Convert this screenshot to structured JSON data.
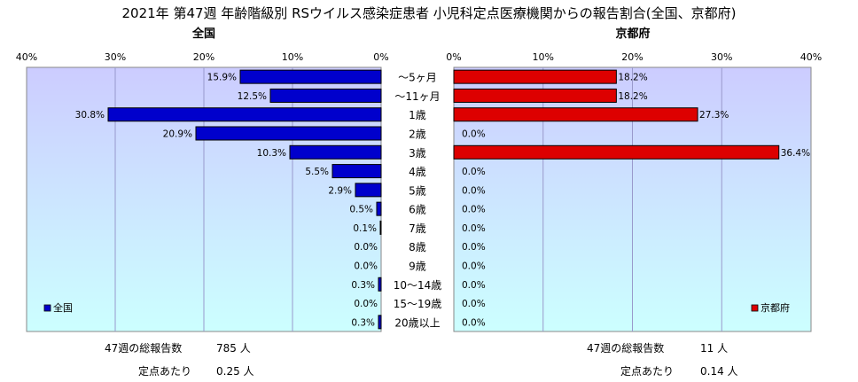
{
  "title": "2021年 第47週 年齢階級別 RSウイルス感染症患者 小児科定点医療機関からの報告割合(全国、京都府)",
  "age_groups": [
    "～5ヶ月",
    "～11ヶ月",
    "1歳",
    "2歳",
    "3歳",
    "4歳",
    "5歳",
    "6歳",
    "7歳",
    "8歳",
    "9歳",
    "10～14歳",
    "15～19歳",
    "20歳以上"
  ],
  "chart_data": [
    {
      "type": "bar",
      "orientation": "horizontal",
      "direction": "right-to-left",
      "title": "全国",
      "categories": [
        "～5ヶ月",
        "～11ヶ月",
        "1歳",
        "2歳",
        "3歳",
        "4歳",
        "5歳",
        "6歳",
        "7歳",
        "8歳",
        "9歳",
        "10～14歳",
        "15～19歳",
        "20歳以上"
      ],
      "series": [
        {
          "name": "全国",
          "color": "#0000cc",
          "values": [
            15.9,
            12.5,
            30.8,
            20.9,
            10.3,
            5.5,
            2.9,
            0.5,
            0.1,
            0.0,
            0.0,
            0.3,
            0.0,
            0.3
          ],
          "labels": [
            "15.9%",
            "12.5%",
            "30.8%",
            "20.9%",
            "10.3%",
            "5.5%",
            "2.9%",
            "0.5%",
            "0.1%",
            "0.0%",
            "0.0%",
            "0.3%",
            "0.0%",
            "0.3%"
          ]
        }
      ],
      "xlim": [
        0,
        40
      ],
      "ticks": [
        "40%",
        "30%",
        "20%",
        "10%",
        "0%"
      ],
      "grid": true,
      "legend": "bottom-left"
    },
    {
      "type": "bar",
      "orientation": "horizontal",
      "direction": "left-to-right",
      "title": "京都府",
      "categories": [
        "～5ヶ月",
        "～11ヶ月",
        "1歳",
        "2歳",
        "3歳",
        "4歳",
        "5歳",
        "6歳",
        "7歳",
        "8歳",
        "9歳",
        "10～14歳",
        "15～19歳",
        "20歳以上"
      ],
      "series": [
        {
          "name": "京都府",
          "color": "#dd0000",
          "values": [
            18.2,
            18.2,
            27.3,
            0.0,
            36.4,
            0.0,
            0.0,
            0.0,
            0.0,
            0.0,
            0.0,
            0.0,
            0.0,
            0.0
          ],
          "labels": [
            "18.2%",
            "18.2%",
            "27.3%",
            "0.0%",
            "36.4%",
            "0.0%",
            "0.0%",
            "0.0%",
            "0.0%",
            "0.0%",
            "0.0%",
            "0.0%",
            "0.0%",
            "0.0%"
          ]
        }
      ],
      "xlim": [
        0,
        40
      ],
      "ticks": [
        "0%",
        "10%",
        "20%",
        "30%",
        "40%"
      ],
      "grid": true,
      "legend": "bottom-right"
    }
  ],
  "footer": {
    "national_total_label": "47週の総報告数",
    "national_total_value": "785 人",
    "national_per_label": "定点あたり",
    "national_per_value": "0.25 人",
    "kyoto_total_label": "47週の総報告数",
    "kyoto_total_value": "11 人",
    "kyoto_per_label": "定点あたり",
    "kyoto_per_value": "0.14 人"
  }
}
